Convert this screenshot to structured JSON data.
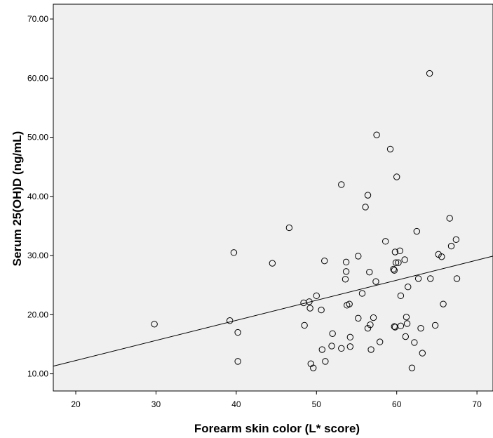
{
  "chart_data": {
    "type": "scatter",
    "xlabel": "Forearm skin color (L* score)",
    "ylabel": "Serum 25(OH)D (ng/mL)",
    "xlim": [
      17.2,
      72.0
    ],
    "ylim": [
      7.1,
      72.5
    ],
    "x_ticks": [
      "20",
      "30",
      "40",
      "50",
      "60",
      "70"
    ],
    "y_ticks": [
      "10.00",
      "20.00",
      "30.00",
      "40.00",
      "50.00",
      "60.00",
      "70.00"
    ],
    "grid": false,
    "legend": "none",
    "plot_background": "#f0f0f0",
    "marker": "open-circle",
    "points": [
      [
        29.8,
        18.4
      ],
      [
        39.2,
        19.0
      ],
      [
        39.7,
        30.5
      ],
      [
        40.2,
        17.0
      ],
      [
        40.2,
        12.1
      ],
      [
        44.5,
        28.7
      ],
      [
        46.6,
        34.7
      ],
      [
        48.4,
        22.0
      ],
      [
        48.5,
        18.2
      ],
      [
        49.1,
        22.2
      ],
      [
        49.2,
        21.1
      ],
      [
        49.3,
        11.7
      ],
      [
        49.6,
        11.0
      ],
      [
        50.0,
        23.2
      ],
      [
        50.6,
        20.8
      ],
      [
        50.7,
        14.1
      ],
      [
        51.0,
        29.1
      ],
      [
        51.1,
        12.1
      ],
      [
        51.9,
        14.7
      ],
      [
        52.0,
        16.8
      ],
      [
        53.1,
        14.3
      ],
      [
        53.1,
        42.0
      ],
      [
        53.6,
        26.0
      ],
      [
        53.7,
        27.3
      ],
      [
        53.7,
        28.9
      ],
      [
        53.8,
        21.6
      ],
      [
        54.1,
        21.8
      ],
      [
        54.2,
        14.6
      ],
      [
        54.2,
        16.2
      ],
      [
        55.2,
        29.9
      ],
      [
        55.2,
        19.4
      ],
      [
        55.7,
        23.6
      ],
      [
        56.1,
        38.2
      ],
      [
        56.4,
        40.2
      ],
      [
        56.4,
        17.7
      ],
      [
        56.6,
        27.2
      ],
      [
        56.7,
        18.3
      ],
      [
        56.8,
        14.1
      ],
      [
        57.1,
        19.5
      ],
      [
        57.4,
        25.6
      ],
      [
        57.5,
        50.4
      ],
      [
        57.9,
        15.4
      ],
      [
        58.6,
        32.4
      ],
      [
        59.2,
        48.0
      ],
      [
        59.6,
        27.7
      ],
      [
        59.7,
        18.0
      ],
      [
        59.7,
        27.5
      ],
      [
        59.8,
        17.9
      ],
      [
        59.8,
        30.6
      ],
      [
        59.9,
        28.8
      ],
      [
        60.0,
        43.3
      ],
      [
        60.2,
        28.8
      ],
      [
        60.4,
        30.8
      ],
      [
        60.5,
        23.2
      ],
      [
        60.5,
        18.1
      ],
      [
        61.0,
        29.3
      ],
      [
        61.1,
        16.3
      ],
      [
        61.2,
        19.6
      ],
      [
        61.3,
        18.5
      ],
      [
        61.4,
        24.7
      ],
      [
        61.9,
        11.0
      ],
      [
        62.2,
        15.3
      ],
      [
        62.5,
        34.1
      ],
      [
        62.7,
        26.1
      ],
      [
        63.0,
        17.7
      ],
      [
        63.2,
        13.5
      ],
      [
        64.1,
        60.8
      ],
      [
        64.2,
        26.1
      ],
      [
        64.8,
        18.2
      ],
      [
        65.2,
        30.2
      ],
      [
        65.6,
        29.8
      ],
      [
        65.8,
        21.8
      ],
      [
        66.6,
        36.3
      ],
      [
        66.8,
        31.6
      ],
      [
        67.4,
        32.7
      ],
      [
        67.5,
        26.1
      ]
    ],
    "fit_line": {
      "type": "linear",
      "x": [
        17.2,
        72.0
      ],
      "y": [
        11.3,
        29.9
      ]
    }
  }
}
